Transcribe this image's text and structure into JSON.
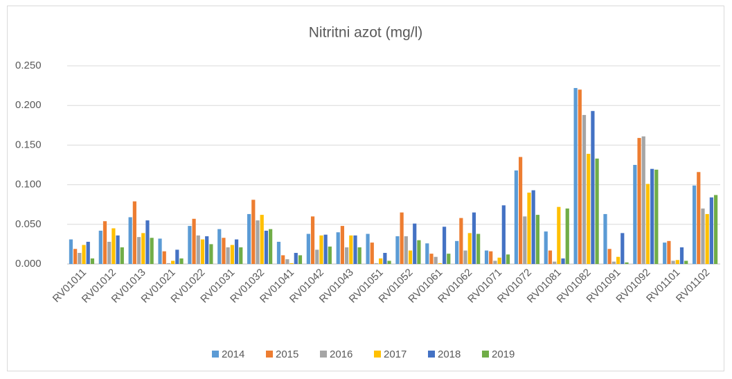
{
  "chart_data": {
    "type": "bar",
    "title": "Nitritni azot (mg/l)",
    "categories": [
      "RV01011",
      "RV01012",
      "RV01013",
      "RV01021",
      "RV01022",
      "RV01031",
      "RV01032",
      "RV01041",
      "RV01042",
      "RV01043",
      "RV01051",
      "RV01052",
      "RV01061",
      "RV01062",
      "RV01071",
      "RV01072",
      "RV01081",
      "RV01082",
      "RV01091",
      "RV01092",
      "RV01101",
      "RV01102"
    ],
    "series": [
      {
        "name": "2014",
        "color": "#5b9bd5",
        "values": [
          0.031,
          0.042,
          0.059,
          0.032,
          0.048,
          0.044,
          0.063,
          0.028,
          0.038,
          0.04,
          0.038,
          0.035,
          0.026,
          0.029,
          0.017,
          0.118,
          0.041,
          0.222,
          0.063,
          0.125,
          0.027,
          0.099
        ]
      },
      {
        "name": "2015",
        "color": "#ed7d31",
        "values": [
          0.019,
          0.054,
          0.079,
          0.016,
          0.057,
          0.033,
          0.081,
          0.011,
          0.06,
          0.048,
          0.027,
          0.065,
          0.013,
          0.058,
          0.016,
          0.135,
          0.017,
          0.22,
          0.019,
          0.159,
          0.029,
          0.116
        ]
      },
      {
        "name": "2016",
        "color": "#a5a5a5",
        "values": [
          0.014,
          0.028,
          0.034,
          0.001,
          0.036,
          0.021,
          0.055,
          0.006,
          0.018,
          0.021,
          0.001,
          0.035,
          0.009,
          0.017,
          0.004,
          0.06,
          0.003,
          0.188,
          0.003,
          0.161,
          0.004,
          0.07
        ]
      },
      {
        "name": "2017",
        "color": "#ffc000",
        "values": [
          0.024,
          0.045,
          0.039,
          0.004,
          0.031,
          0.024,
          0.062,
          0.001,
          0.036,
          0.036,
          0.007,
          0.017,
          0.001,
          0.039,
          0.008,
          0.09,
          0.072,
          0.139,
          0.009,
          0.101,
          0.005,
          0.063
        ]
      },
      {
        "name": "2018",
        "color": "#4472c4",
        "values": [
          0.028,
          0.036,
          0.055,
          0.018,
          0.035,
          0.031,
          0.042,
          0.014,
          0.037,
          0.036,
          0.014,
          0.051,
          0.047,
          0.065,
          0.074,
          0.093,
          0.007,
          0.193,
          0.039,
          0.12,
          0.021,
          0.084
        ]
      },
      {
        "name": "2019",
        "color": "#70ad47",
        "values": [
          0.007,
          0.021,
          0.033,
          0.007,
          0.025,
          0.021,
          0.044,
          0.011,
          0.022,
          0.021,
          0.004,
          0.03,
          0.013,
          0.038,
          0.012,
          0.062,
          0.07,
          0.133,
          0.002,
          0.119,
          0.004,
          0.087
        ]
      }
    ],
    "ylim": [
      0,
      0.25
    ],
    "yticks": [
      {
        "value": 0,
        "label": "0.000"
      },
      {
        "value": 0.05,
        "label": "0.050"
      },
      {
        "value": 0.1,
        "label": "0.100"
      },
      {
        "value": 0.15,
        "label": "0.150"
      },
      {
        "value": 0.2,
        "label": "0.200"
      },
      {
        "value": 0.25,
        "label": "0.250"
      }
    ],
    "grid": true,
    "legend": "bottom"
  }
}
